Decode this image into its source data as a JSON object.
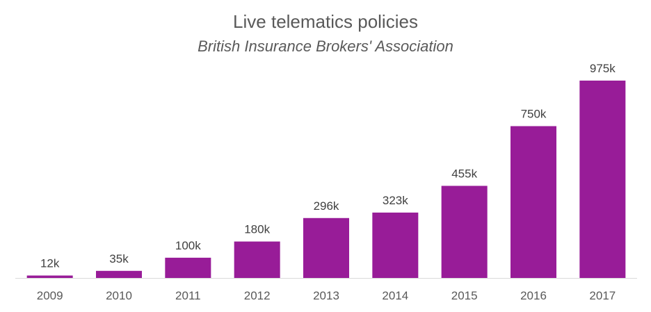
{
  "chart_data": {
    "type": "bar",
    "title": "Live telematics policies",
    "subtitle": "British Insurance Brokers' Association",
    "xlabel": "",
    "ylabel": "",
    "categories": [
      "2009",
      "2010",
      "2011",
      "2012",
      "2013",
      "2014",
      "2015",
      "2016",
      "2017"
    ],
    "values": [
      12,
      35,
      100,
      180,
      296,
      323,
      455,
      750,
      975
    ],
    "value_labels": [
      "12k",
      "35k",
      "100k",
      "180k",
      "296k",
      "323k",
      "455k",
      "750k",
      "975k"
    ],
    "ylim": [
      0,
      1000
    ],
    "grid": false,
    "legend": "none",
    "bar_color": "#981C98",
    "axis_color": "#D9D9D9"
  }
}
